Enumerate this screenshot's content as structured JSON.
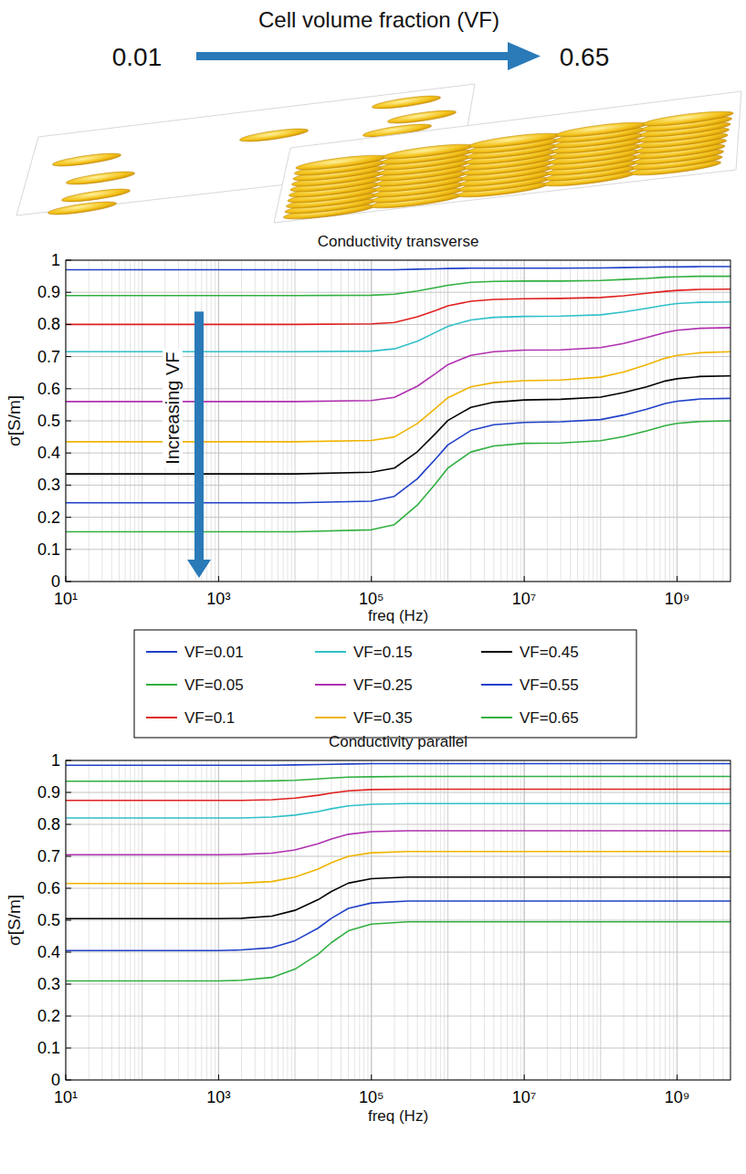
{
  "header": {
    "title": "Cell volume fraction (VF)",
    "start": "0.01",
    "end": "0.65"
  },
  "chart_data": [
    {
      "type": "line",
      "title": "Conductivity transverse",
      "x_label": "freq (Hz)",
      "y_label": "σ[S/m]",
      "log": "x",
      "grid": true,
      "legend": "bottom",
      "annotations": [
        {
          "text": "Increasing VF"
        }
      ],
      "xlim": [
        10,
        5000000000
      ],
      "ylim": [
        0,
        1
      ],
      "xticks": [
        {
          "value": 10,
          "label": "10¹"
        },
        {
          "value": 1000,
          "label": "10³"
        },
        {
          "value": 100000,
          "label": "10⁵"
        },
        {
          "value": 10000000,
          "label": "10⁷"
        },
        {
          "value": 1000000000,
          "label": "10⁹"
        }
      ],
      "yticks": [
        0,
        0.1,
        0.2,
        0.3,
        0.4,
        0.5,
        0.6,
        0.7,
        0.8,
        0.9,
        1
      ],
      "x": [
        10,
        100,
        1000,
        10000,
        100000,
        200000,
        400000,
        700000,
        1000000,
        2000000,
        4000000,
        10000000,
        30000000,
        100000000,
        200000000,
        400000000,
        700000000,
        1000000000,
        2000000000,
        5000000000
      ],
      "series": [
        {
          "name": "VF=0.01",
          "color": "#2040c8",
          "values": [
            0.97,
            0.97,
            0.97,
            0.97,
            0.97,
            0.97,
            0.972,
            0.973,
            0.974,
            0.975,
            0.975,
            0.975,
            0.975,
            0.976,
            0.977,
            0.978,
            0.979,
            0.979,
            0.98,
            0.98
          ]
        },
        {
          "name": "VF=0.05",
          "color": "#30b040",
          "values": [
            0.89,
            0.89,
            0.89,
            0.89,
            0.891,
            0.894,
            0.904,
            0.915,
            0.922,
            0.931,
            0.934,
            0.935,
            0.935,
            0.937,
            0.94,
            0.943,
            0.947,
            0.948,
            0.95,
            0.95
          ]
        },
        {
          "name": "VF=0.1",
          "color": "#e02020",
          "values": [
            0.8,
            0.8,
            0.8,
            0.8,
            0.802,
            0.806,
            0.824,
            0.844,
            0.858,
            0.872,
            0.878,
            0.88,
            0.881,
            0.884,
            0.889,
            0.897,
            0.903,
            0.906,
            0.909,
            0.91
          ]
        },
        {
          "name": "VF=0.15",
          "color": "#30c0c8",
          "values": [
            0.715,
            0.715,
            0.715,
            0.715,
            0.717,
            0.724,
            0.748,
            0.776,
            0.794,
            0.814,
            0.822,
            0.825,
            0.826,
            0.83,
            0.839,
            0.85,
            0.86,
            0.865,
            0.869,
            0.87
          ]
        },
        {
          "name": "VF=0.25",
          "color": "#b030b0",
          "values": [
            0.56,
            0.56,
            0.56,
            0.56,
            0.563,
            0.573,
            0.608,
            0.648,
            0.675,
            0.704,
            0.715,
            0.72,
            0.721,
            0.728,
            0.741,
            0.759,
            0.775,
            0.782,
            0.788,
            0.79
          ]
        },
        {
          "name": "VF=0.35",
          "color": "#f0b400",
          "values": [
            0.435,
            0.435,
            0.435,
            0.435,
            0.439,
            0.45,
            0.492,
            0.54,
            0.572,
            0.606,
            0.619,
            0.625,
            0.627,
            0.636,
            0.652,
            0.675,
            0.695,
            0.704,
            0.712,
            0.715
          ]
        },
        {
          "name": "VF=0.45",
          "color": "#000000",
          "values": [
            0.335,
            0.335,
            0.335,
            0.335,
            0.34,
            0.353,
            0.404,
            0.462,
            0.501,
            0.542,
            0.558,
            0.565,
            0.567,
            0.574,
            0.588,
            0.606,
            0.624,
            0.631,
            0.638,
            0.64
          ]
        },
        {
          "name": "VF=0.55",
          "color": "#2040c8",
          "values": [
            0.245,
            0.245,
            0.245,
            0.245,
            0.25,
            0.265,
            0.32,
            0.383,
            0.425,
            0.47,
            0.488,
            0.495,
            0.497,
            0.504,
            0.518,
            0.536,
            0.554,
            0.561,
            0.568,
            0.57
          ]
        },
        {
          "name": "VF=0.65",
          "color": "#30b040",
          "values": [
            0.155,
            0.155,
            0.155,
            0.155,
            0.161,
            0.177,
            0.238,
            0.306,
            0.353,
            0.403,
            0.422,
            0.43,
            0.431,
            0.438,
            0.451,
            0.469,
            0.485,
            0.492,
            0.498,
            0.5
          ]
        }
      ]
    },
    {
      "type": "line",
      "title": "Conductivity parallel",
      "x_label": "freq (Hz)",
      "y_label": "σ[S/m]",
      "log": "x",
      "grid": true,
      "xlim": [
        10,
        5000000000
      ],
      "ylim": [
        0,
        1
      ],
      "xticks": [
        {
          "value": 10,
          "label": "10¹"
        },
        {
          "value": 1000,
          "label": "10³"
        },
        {
          "value": 100000,
          "label": "10⁵"
        },
        {
          "value": 10000000,
          "label": "10⁷"
        },
        {
          "value": 1000000000,
          "label": "10⁹"
        }
      ],
      "yticks": [
        0,
        0.1,
        0.2,
        0.3,
        0.4,
        0.5,
        0.6,
        0.7,
        0.8,
        0.9,
        1
      ],
      "x": [
        10,
        100,
        1000,
        2000,
        5000,
        10000,
        20000,
        30000,
        50000,
        100000,
        300000,
        1000000,
        10000000,
        100000000,
        1000000000,
        5000000000
      ],
      "series": [
        {
          "color": "#2040c8",
          "values": [
            0.985,
            0.985,
            0.985,
            0.985,
            0.985,
            0.986,
            0.987,
            0.988,
            0.989,
            0.99,
            0.99,
            0.99,
            0.99,
            0.99,
            0.99,
            0.99
          ]
        },
        {
          "color": "#30b040",
          "values": [
            0.935,
            0.935,
            0.935,
            0.935,
            0.936,
            0.938,
            0.942,
            0.945,
            0.948,
            0.949,
            0.95,
            0.95,
            0.95,
            0.95,
            0.95,
            0.95
          ]
        },
        {
          "color": "#e02020",
          "values": [
            0.875,
            0.875,
            0.875,
            0.875,
            0.877,
            0.882,
            0.891,
            0.898,
            0.905,
            0.909,
            0.91,
            0.91,
            0.91,
            0.91,
            0.91,
            0.91
          ]
        },
        {
          "color": "#30c0c8",
          "values": [
            0.82,
            0.82,
            0.82,
            0.82,
            0.823,
            0.829,
            0.84,
            0.849,
            0.858,
            0.863,
            0.865,
            0.865,
            0.865,
            0.865,
            0.865,
            0.865
          ]
        },
        {
          "color": "#b030b0",
          "values": [
            0.705,
            0.705,
            0.705,
            0.706,
            0.71,
            0.72,
            0.739,
            0.754,
            0.769,
            0.777,
            0.78,
            0.78,
            0.78,
            0.78,
            0.78,
            0.78
          ]
        },
        {
          "color": "#f0b400",
          "values": [
            0.615,
            0.615,
            0.615,
            0.616,
            0.621,
            0.635,
            0.66,
            0.68,
            0.7,
            0.711,
            0.715,
            0.715,
            0.715,
            0.715,
            0.715,
            0.715
          ]
        },
        {
          "color": "#000000",
          "values": [
            0.505,
            0.505,
            0.505,
            0.506,
            0.513,
            0.531,
            0.564,
            0.59,
            0.616,
            0.63,
            0.635,
            0.635,
            0.635,
            0.635,
            0.635,
            0.635
          ]
        },
        {
          "color": "#2040c8",
          "values": [
            0.405,
            0.405,
            0.405,
            0.407,
            0.414,
            0.436,
            0.475,
            0.506,
            0.537,
            0.554,
            0.56,
            0.56,
            0.56,
            0.56,
            0.56,
            0.56
          ]
        },
        {
          "color": "#30b040",
          "values": [
            0.31,
            0.31,
            0.31,
            0.312,
            0.321,
            0.347,
            0.393,
            0.43,
            0.467,
            0.488,
            0.495,
            0.495,
            0.495,
            0.495,
            0.495,
            0.495
          ]
        }
      ]
    }
  ]
}
